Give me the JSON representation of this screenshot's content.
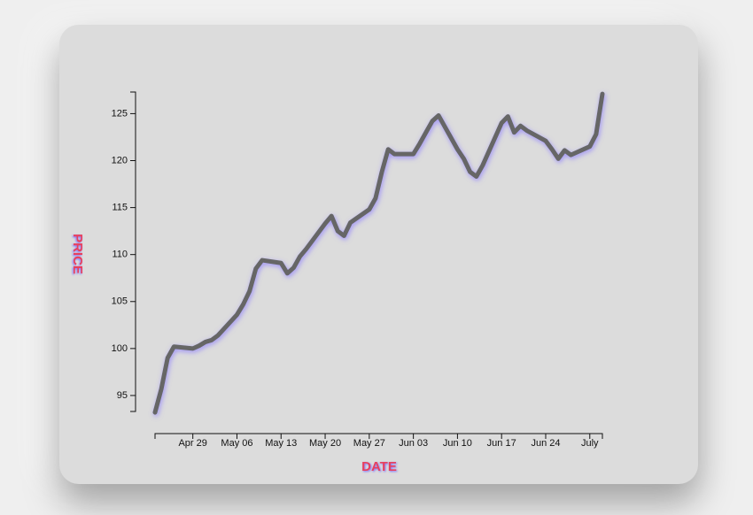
{
  "chart_data": {
    "type": "line",
    "x_label": "DATE",
    "y_label": "PRICE",
    "x": [
      "Apr 23",
      "Apr 24",
      "Apr 25",
      "Apr 26",
      "Apr 29",
      "Apr 30",
      "May 01",
      "May 02",
      "May 03",
      "May 06",
      "May 07",
      "May 08",
      "May 09",
      "May 10",
      "May 13",
      "May 14",
      "May 15",
      "May 16",
      "May 17",
      "May 20",
      "May 21",
      "May 22",
      "May 23",
      "May 24",
      "May 27",
      "May 28",
      "May 29",
      "May 30",
      "May 31",
      "Jun 03",
      "Jun 04",
      "Jun 05",
      "Jun 06",
      "Jun 07",
      "Jun 10",
      "Jun 11",
      "Jun 12",
      "Jun 13",
      "Jun 14",
      "Jun 17",
      "Jun 18",
      "Jun 19",
      "Jun 20",
      "Jun 21",
      "Jun 24",
      "Jun 25",
      "Jun 26",
      "Jun 27",
      "Jun 28",
      "Jul 01",
      "Jul 02",
      "Jul 03"
    ],
    "series": [
      {
        "name": "price",
        "color": "#666666",
        "values": [
          93.2,
          95.7,
          99,
          100.2,
          100,
          100.3,
          100.7,
          100.9,
          101.4,
          103.6,
          104.7,
          106.1,
          108.5,
          109.4,
          109.1,
          108,
          108.6,
          109.8,
          110.6,
          113.3,
          114.1,
          112.5,
          112,
          113.4,
          114.8,
          116,
          118.8,
          121.2,
          120.7,
          120.7,
          121.8,
          123,
          124.2,
          124.8,
          121.2,
          120.2,
          118.8,
          118.3,
          119.5,
          124,
          124.7,
          123,
          123.7,
          123.2,
          122.1,
          121.2,
          120.2,
          121.1,
          120.6,
          121.5,
          122.8,
          127.1
        ]
      }
    ],
    "xlim": [
      "Apr 23",
      "Jul 03"
    ],
    "xticks": [
      "Apr 29",
      "May 06",
      "May 13",
      "May 20",
      "May 27",
      "Jun 03",
      "Jun 10",
      "Jun 17",
      "Jun 24",
      {
        "value": "Jul 01",
        "label": "July"
      }
    ],
    "ylim": [
      93.3,
      127.3
    ],
    "yticks": [
      95,
      100,
      105,
      110,
      115,
      120,
      125
    ]
  }
}
